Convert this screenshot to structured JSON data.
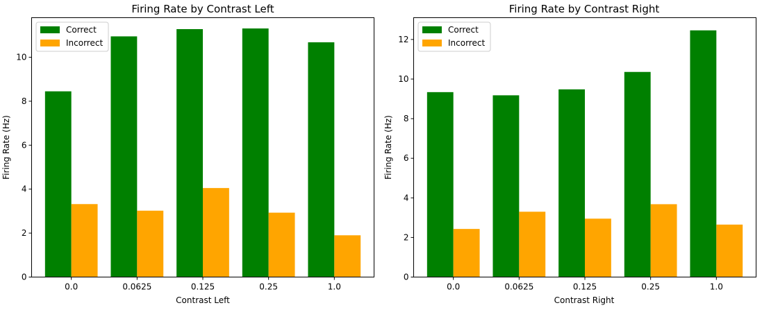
{
  "chart_data": [
    {
      "type": "bar",
      "title": "Firing Rate by Contrast Left",
      "xlabel": "Contrast Left",
      "ylabel": "Firing Rate (Hz)",
      "categories": [
        "0.0",
        "0.0625",
        "0.125",
        "0.25",
        "1.0"
      ],
      "ylim": [
        0,
        11.8
      ],
      "yticks": [
        0,
        2,
        4,
        6,
        8,
        10
      ],
      "yticks_text": [
        "0",
        "2",
        "4",
        "6",
        "8",
        "10"
      ],
      "legend_position": "upper left",
      "series": [
        {
          "name": "Correct",
          "color": "#008000",
          "values": [
            8.45,
            10.95,
            11.28,
            11.31,
            10.68
          ]
        },
        {
          "name": "Incorrect",
          "color": "#FFA500",
          "values": [
            3.32,
            3.02,
            4.05,
            2.93,
            1.9
          ]
        }
      ]
    },
    {
      "type": "bar",
      "title": "Firing Rate by Contrast Right",
      "xlabel": "Contrast Right",
      "ylabel": "Firing Rate (Hz)",
      "categories": [
        "0.0",
        "0.0625",
        "0.125",
        "0.25",
        "1.0"
      ],
      "ylim": [
        0,
        13.1
      ],
      "yticks": [
        0,
        2,
        4,
        6,
        8,
        10,
        12
      ],
      "yticks_text": [
        "0",
        "2",
        "4",
        "6",
        "8",
        "10",
        "12"
      ],
      "legend_position": "upper left",
      "series": [
        {
          "name": "Correct",
          "color": "#008000",
          "values": [
            9.34,
            9.18,
            9.48,
            10.36,
            12.46
          ]
        },
        {
          "name": "Incorrect",
          "color": "#FFA500",
          "values": [
            2.43,
            3.3,
            2.95,
            3.68,
            2.65
          ]
        }
      ]
    }
  ]
}
